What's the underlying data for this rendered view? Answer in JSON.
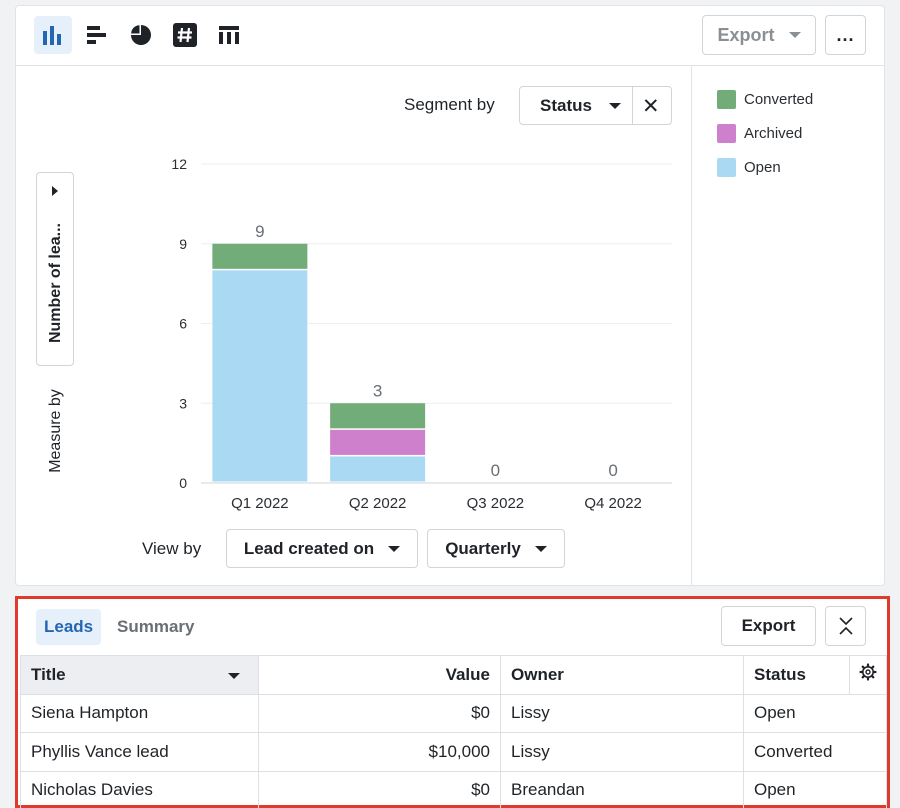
{
  "toolbar": {
    "views": [
      {
        "icon": "bar-chart-icon",
        "active": true
      },
      {
        "icon": "horizontal-bar-icon",
        "active": false
      },
      {
        "icon": "pie-chart-icon",
        "active": false
      },
      {
        "icon": "number-icon",
        "active": false
      },
      {
        "icon": "table-icon",
        "active": false
      }
    ],
    "export_label": "Export",
    "more_label": "..."
  },
  "segment": {
    "label": "Segment by",
    "value": "Status"
  },
  "measure": {
    "label": "Measure by",
    "value": "Number of lea..."
  },
  "view": {
    "label": "View by",
    "field": "Lead created on",
    "period": "Quarterly"
  },
  "legend": [
    {
      "name": "Converted",
      "color": "#72ad79"
    },
    {
      "name": "Archived",
      "color": "#cf80cc"
    },
    {
      "name": "Open",
      "color": "#aadaf3"
    }
  ],
  "chart_data": {
    "type": "bar",
    "stacked": true,
    "categories": [
      "Q1 2022",
      "Q2 2022",
      "Q3 2022",
      "Q4 2022"
    ],
    "series": [
      {
        "name": "Open",
        "values": [
          8,
          1,
          0,
          0
        ],
        "color": "#aadaf3"
      },
      {
        "name": "Archived",
        "values": [
          0,
          1,
          0,
          0
        ],
        "color": "#cf80cc"
      },
      {
        "name": "Converted",
        "values": [
          1,
          1,
          0,
          0
        ],
        "color": "#72ad79"
      }
    ],
    "totals": [
      9,
      3,
      0,
      0
    ],
    "yticks": [
      0,
      3,
      6,
      9,
      12
    ],
    "ylim": [
      0,
      12
    ],
    "grid": true,
    "legend": "right"
  },
  "panel": {
    "tabs": [
      {
        "label": "Leads",
        "active": true
      },
      {
        "label": "Summary",
        "active": false
      }
    ],
    "export_label": "Export",
    "columns": [
      "Title",
      "Value",
      "Owner",
      "Status"
    ],
    "rows": [
      {
        "title": "Siena Hampton",
        "value": "$0",
        "owner": "Lissy",
        "status": "Open"
      },
      {
        "title": "Phyllis Vance lead",
        "value": "$10,000",
        "owner": "Lissy",
        "status": "Converted"
      },
      {
        "title": "Nicholas Davies",
        "value": "$0",
        "owner": "Breandan",
        "status": "Open"
      }
    ]
  }
}
